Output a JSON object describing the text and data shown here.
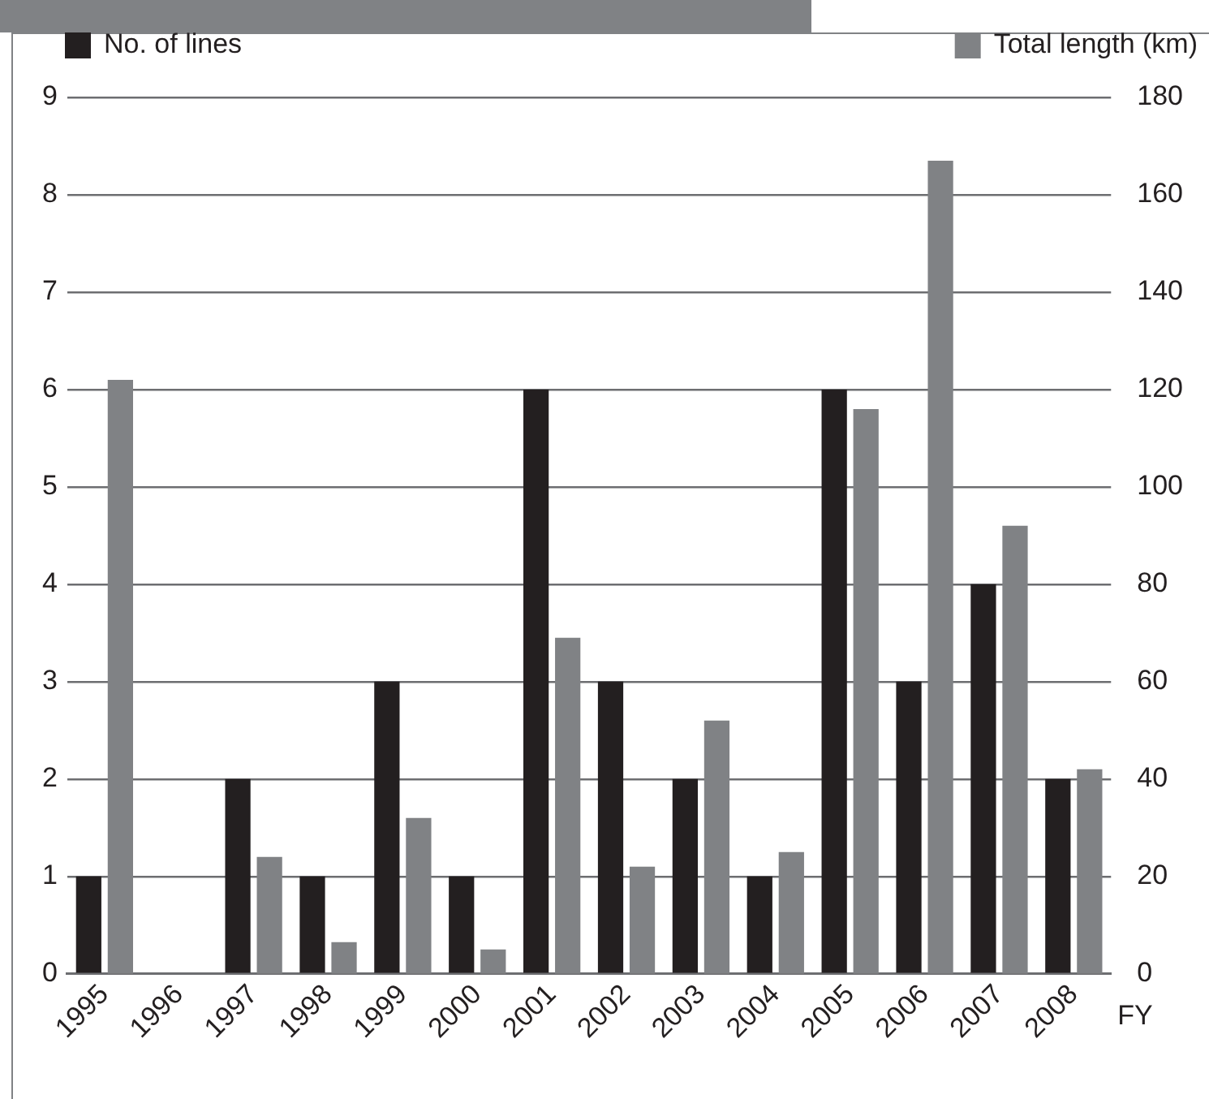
{
  "chart_data": {
    "type": "bar",
    "xlabel": "FY",
    "categories": [
      "1995",
      "1996",
      "1997",
      "1998",
      "1999",
      "2000",
      "2001",
      "2002",
      "2003",
      "2004",
      "2005",
      "2006",
      "2007",
      "2008"
    ],
    "series": [
      {
        "name": "No. of lines",
        "color": "#231f20",
        "values": [
          1,
          0,
          2,
          1,
          3,
          1,
          6,
          3,
          2,
          1,
          6,
          3,
          4,
          2
        ]
      },
      {
        "name": "Total length (km)",
        "color": "#808285",
        "axis": "y2",
        "values": [
          122,
          0,
          24,
          6.5,
          32,
          5,
          69,
          22,
          52,
          25,
          116,
          167,
          92,
          42
        ]
      }
    ],
    "ylim": [
      0,
      9
    ],
    "yticks": [
      0,
      1,
      2,
      3,
      4,
      5,
      6,
      7,
      8,
      9
    ],
    "y2lim": [
      0,
      180
    ],
    "y2ticks": [
      0,
      20,
      40,
      60,
      80,
      100,
      120,
      140,
      160,
      180
    ],
    "grid": "y",
    "legend": "top"
  }
}
